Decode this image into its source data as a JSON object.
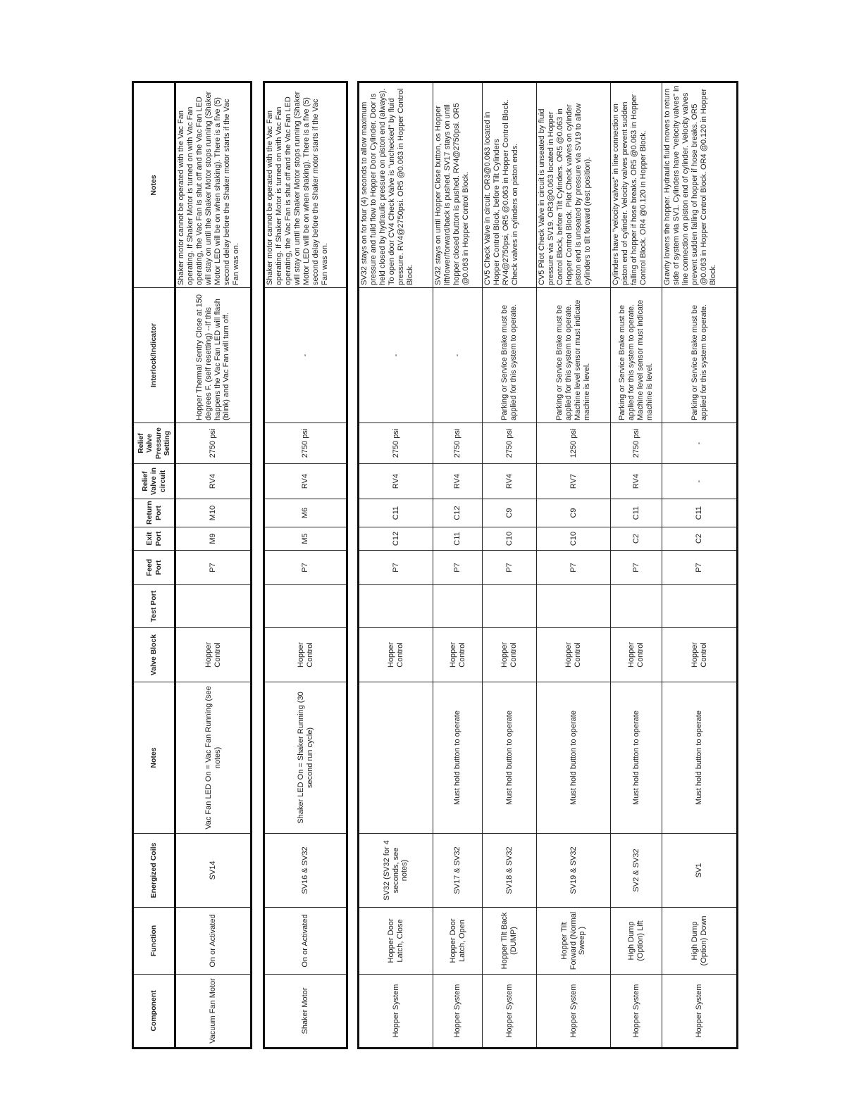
{
  "headers": [
    "Component",
    "Function",
    "Energized Coils",
    "Notes",
    "Valve Block",
    "Test Port",
    "Feed Port",
    "Exit Port",
    "Return Port",
    "Relief Valve in circuit",
    "Relief Valve Pressure Setting",
    "Interlock/Indicator",
    "Notes"
  ],
  "tables": [
    {
      "rows": [
        {
          "h": 108,
          "cells": [
            "Vacuum Fan Motor",
            "On or Activated",
            "SV14",
            "Vac Fan LED On = Vac Fan Running (see notes)",
            "Hopper Control",
            "",
            "P7",
            "M9",
            "M10",
            "RV4",
            "2750 psi",
            "Hopper Thermal Sentry Close at 150 degrees F. (self resetting) --If this happens the Vac Fan LED will flash (blink) and Vac Fan will turn off.",
            "Shaker motor cannot be operated with the Vac Fan operating.   If Shaker Motor is turned on with Vac Fan operating, the Vac Fan is shut off and the Vac Fan LED will stay on until the Shaker Motor stops running (Shaker Motor LED will be on when shaking).  There is a five (5) second delay before the Shaker motor starts if the Vac Fan was on."
          ]
        }
      ]
    },
    {
      "rows": [
        {
          "h": 118,
          "cells": [
            "Shaker Motor",
            "On or Activated",
            "SV16 & SV32",
            "Shaker LED On = Shaker Running (30 second run cycle)",
            "Hopper Control",
            "",
            "P7",
            "M5",
            "M6",
            "RV4",
            "2750 psi",
            "-",
            "Shaker motor cannot be operated with the Vac Fan operating.   If Shaker Motor is turned on with Vac Fan operating, the Vac Fan is shut off and the Vac Fan LED will stay on until the Shaker Motor stops running (Shaker Motor LED will be on when shaking).  There is a five (5) second delay before the Shaker motor starts if the Vac Fan was on."
          ]
        }
      ]
    },
    {
      "rows": [
        {
          "h": 106,
          "cells": [
            "Hopper System",
            "Hopper Door Latch, Close",
            "SV32 (SV32 for 4 seconds, see notes)",
            "",
            "Hopper Control",
            "",
            "P7",
            "C12",
            "C11",
            "RV4",
            "2750 psi",
            "-",
            "SV32 stays on for four (4) seconds to allow maximum pressure and fuild flow to Hopper Door Cylinder.   Door is held closed by hydraulic pressure on piston end (always).  To open door CV4 Check Valve is \"unchecked\" by fluid pressure.  RV4@2750psi.  OR5 @0.063 in Hopper Control Block."
          ]
        },
        {
          "h": 70,
          "cells": [
            "Hopper System",
            "Hopper Door Latch, Open",
            "SV17 & SV32",
            "Must hold button to operate",
            "Hopper Control",
            "",
            "P7",
            "C11",
            "C12",
            "RV4",
            "2750 psi",
            "-",
            "SV32 stays on until Hopper Close button, os Hopper lift/lower/forward/back is pushed.   SV17 stays on until hopper closed button is pushed.  RV4@2750psi.  OR5 @0.063 in Hopper Control Block."
          ]
        },
        {
          "h": 77,
          "cells": [
            "Hopper System",
            "Hopper Tilt Back (DUMP)",
            "SV18 & SV32",
            "Must hold button to operate",
            "Hopper Control",
            "",
            "P7",
            "C10",
            "C9",
            "RV4",
            "2750 psi",
            "Parking or Service Brake must be applied for this system to operate.",
            "CV5 Check Valve in circuit. OR3@0.063 located in Hopper Control Block, before Tilt Cylinders RV4@2750psi, OR5 @0.063 in Hopper Control Block.  Check valves in cylinders on piston ends."
          ]
        },
        {
          "h": 105,
          "cells": [
            "Hopper System",
            "Hopper Tilt Forward (Normal Sweep )",
            "SV19 & SV32",
            "Must hold button to operate",
            "Hopper Control",
            "",
            "P7",
            "C10",
            "C9",
            "RV7",
            "1250 psi",
            "Parking or Service Brake must be applied for this system to operate.  Machine level sensor must indicate machine is level.",
            "CV5 Pilot Check Valve in circuit is unseated by fluid pressure via SV19. OR3@0.063 located in Hopper Control Block, before Tilt Cylinders.  OR5 @0.063 in Hopper Control Block.  Pilot Check valves on cylinder piston end is unseated by pressure via SV19 to allow cylinders to tilt forward (rest position)."
          ]
        },
        {
          "h": 73,
          "cells": [
            "Hopper System",
            "High Dump (Option) Lift",
            "SV2 & SV32",
            "Must hold button to operate",
            "Hopper Control",
            "",
            "P7",
            "C2",
            "C11",
            "RV4",
            "2750 psi",
            "Parking or Service Brake must be applied for this system to operate.  Machine level sensor must indicate machine is level.",
            "Cylinders have \"velocity valves\" in line connection on piston end of cylinder.  Velocity valves prevent sudden falling of hopper if hose breaks.   OR5 @0.063 in Hopper Control Block.  OR4 @0.120 in Hopper Block."
          ]
        },
        {
          "h": 107,
          "cells": [
            "Hopper System",
            "High Dump (Option) Down",
            "SV1",
            "Must hold button to operate",
            "Hopper Control",
            "",
            "P7",
            "C2",
            "C11",
            "-",
            "-",
            "Parking or Service Brake must be applied for this system to operate.",
            "Gravity lowers the hopper.  Hydraulic fluid moves to return side of system via SV1.   Cylinders have \"velocity valves\" in line connection on piston end of cylinder.  Velocity valves prevent sudden falling of hopper if hose breaks.    OR5 @0.063 in Hopper Control Block.   OR4 @0.120 in Hopper Block."
          ]
        }
      ]
    }
  ]
}
